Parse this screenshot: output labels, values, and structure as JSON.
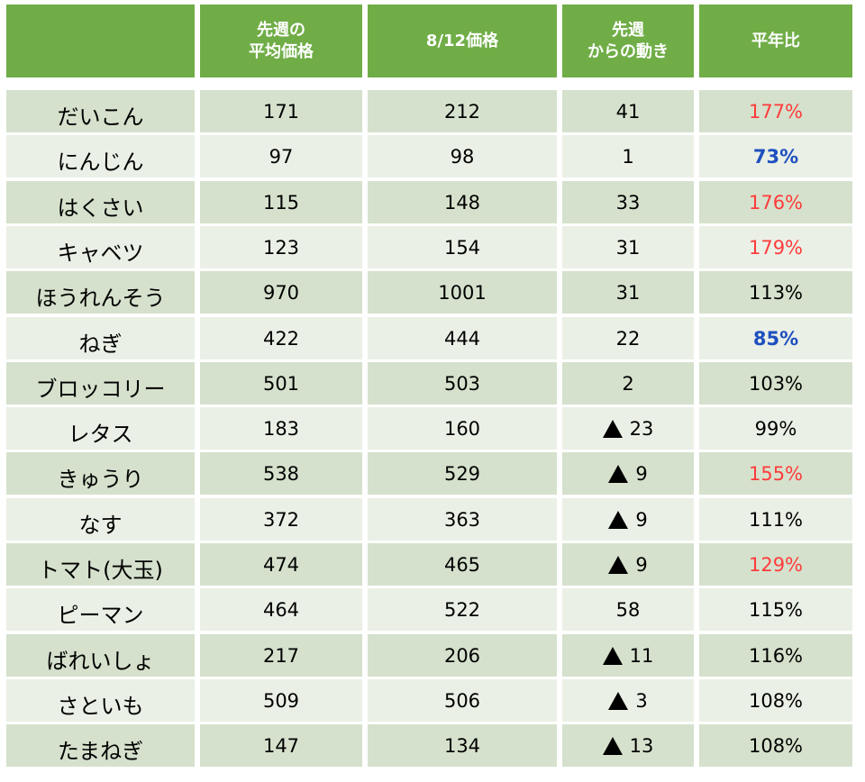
{
  "header": {
    "name": "",
    "prev_week_line1": "先週の",
    "prev_week_line2": "平均価格",
    "date_price": "8/12価格",
    "change_line1": "先週",
    "change_line2": "からの動き",
    "yoy": "平年比"
  },
  "colors": {
    "header_bg": "#70ad47",
    "row_odd": "#d5e1cc",
    "row_even": "#eaf0e6",
    "high": "#ff3b3b",
    "low": "#1f4fbf"
  },
  "rows": [
    {
      "name": "だいこん",
      "prev": "171",
      "price": "212",
      "change": "41",
      "down": false,
      "yoy": "177%",
      "tone": "red"
    },
    {
      "name": "にんじん",
      "prev": "97",
      "price": "98",
      "change": "1",
      "down": false,
      "yoy": "73%",
      "tone": "blue"
    },
    {
      "name": "はくさい",
      "prev": "115",
      "price": "148",
      "change": "33",
      "down": false,
      "yoy": "176%",
      "tone": "red"
    },
    {
      "name": "キャベツ",
      "prev": "123",
      "price": "154",
      "change": "31",
      "down": false,
      "yoy": "179%",
      "tone": "red"
    },
    {
      "name": "ほうれんそう",
      "prev": "970",
      "price": "1001",
      "change": "31",
      "down": false,
      "yoy": "113%",
      "tone": ""
    },
    {
      "name": "ねぎ",
      "prev": "422",
      "price": "444",
      "change": "22",
      "down": false,
      "yoy": "85%",
      "tone": "blue"
    },
    {
      "name": "ブロッコリー",
      "prev": "501",
      "price": "503",
      "change": "2",
      "down": false,
      "yoy": "103%",
      "tone": ""
    },
    {
      "name": "レタス",
      "prev": "183",
      "price": "160",
      "change": "23",
      "down": true,
      "yoy": "99%",
      "tone": ""
    },
    {
      "name": "きゅうり",
      "prev": "538",
      "price": "529",
      "change": "9",
      "down": true,
      "yoy": "155%",
      "tone": "red"
    },
    {
      "name": "なす",
      "prev": "372",
      "price": "363",
      "change": "9",
      "down": true,
      "yoy": "111%",
      "tone": ""
    },
    {
      "name": "トマト(大玉)",
      "prev": "474",
      "price": "465",
      "change": "9",
      "down": true,
      "yoy": "129%",
      "tone": "red"
    },
    {
      "name": "ピーマン",
      "prev": "464",
      "price": "522",
      "change": "58",
      "down": false,
      "yoy": "115%",
      "tone": ""
    },
    {
      "name": "ばれいしょ",
      "prev": "217",
      "price": "206",
      "change": "11",
      "down": true,
      "yoy": "116%",
      "tone": ""
    },
    {
      "name": "さといも",
      "prev": "509",
      "price": "506",
      "change": "3",
      "down": true,
      "yoy": "108%",
      "tone": ""
    },
    {
      "name": "たまねぎ",
      "prev": "147",
      "price": "134",
      "change": "13",
      "down": true,
      "yoy": "108%",
      "tone": ""
    }
  ]
}
